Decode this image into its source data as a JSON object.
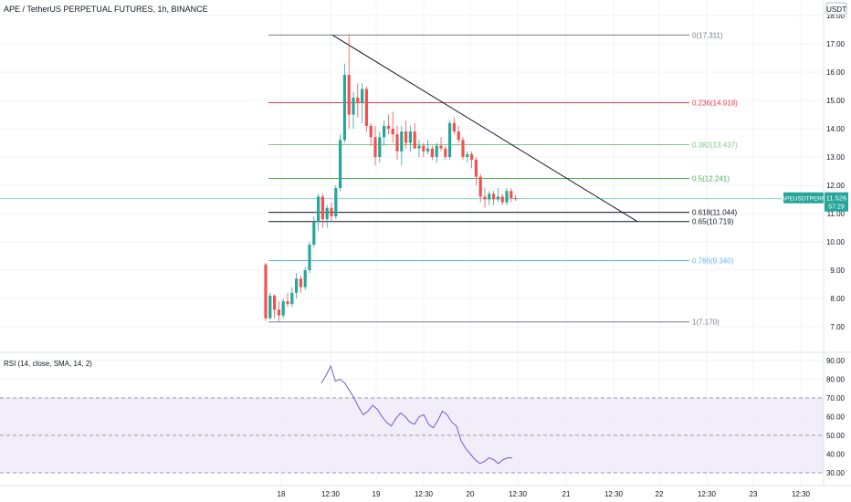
{
  "header": {
    "title": "APE / TetherUS PERPETUAL FUTURES, 1h, BINANCE",
    "currency": "USDT"
  },
  "price_axis": {
    "ticks": [
      "18.00",
      "17.00",
      "16.00",
      "15.00",
      "14.00",
      "13.00",
      "12.00",
      "11.00",
      "10.00",
      "9.00",
      "8.00",
      "7.00"
    ],
    "tick_values": [
      18,
      17,
      16,
      15,
      14,
      13,
      12,
      11,
      10,
      9,
      8,
      7
    ]
  },
  "time_axis": {
    "labels": [
      "18",
      "12:30",
      "19",
      "12:30",
      "20",
      "12:30",
      "21",
      "12:30",
      "22",
      "12:30",
      "23",
      "12:30"
    ]
  },
  "price_tag": {
    "symbol": "APEUSDTPERP",
    "price": "11.526",
    "countdown": "57:29",
    "color": "#26a69a"
  },
  "fib_levels": [
    {
      "label": "0(17.311)",
      "value": 17.311,
      "color": "#787b86"
    },
    {
      "label": "0.236(14.918)",
      "value": 14.918,
      "color": "#f23645"
    },
    {
      "label": "0.382(13.437)",
      "value": 13.437,
      "color": "#81c784"
    },
    {
      "label": "0.5(12.241)",
      "value": 12.241,
      "color": "#4caf50"
    },
    {
      "label": "0.618(11.044)",
      "value": 11.044,
      "color": "#131722"
    },
    {
      "label": "0.65(10.719)",
      "value": 10.719,
      "color": "#131722"
    },
    {
      "label": "0.786(9.340)",
      "value": 9.34,
      "color": "#64b5f6"
    },
    {
      "label": "1(7.170)",
      "value": 7.17,
      "color": "#787b86"
    }
  ],
  "trendline": {
    "start_value": 17.311,
    "end_value": 10.719
  },
  "rsi": {
    "label": "RSI (14, close, SMA, 14, 2)",
    "ticks": [
      "90.00",
      "80.00",
      "70.00",
      "60.00",
      "50.00",
      "40.00",
      "30.00"
    ],
    "tick_values": [
      90,
      80,
      70,
      60,
      50,
      40,
      30
    ],
    "upper_band": 70,
    "middle_band": 50,
    "lower_band": 30,
    "line_color": "#7e57c2",
    "band_fill": "#ede7f6"
  },
  "chart_data": {
    "type": "candlestick",
    "title": "APE / TetherUS PERPETUAL FUTURES, 1h, BINANCE",
    "ylim": [
      6.6,
      18.2
    ],
    "up_color": "#26a69a",
    "down_color": "#ef5350",
    "candles": [
      [
        9.2,
        9.25,
        7.2,
        7.3
      ],
      [
        7.3,
        8.2,
        7.25,
        8.1
      ],
      [
        8.1,
        8.15,
        7.3,
        7.6
      ],
      [
        7.6,
        7.9,
        7.2,
        7.4
      ],
      [
        7.4,
        8.0,
        7.3,
        7.9
      ],
      [
        7.9,
        8.2,
        7.7,
        7.8
      ],
      [
        7.8,
        8.4,
        7.7,
        8.2
      ],
      [
        8.2,
        8.9,
        8.0,
        8.7
      ],
      [
        8.7,
        8.8,
        8.2,
        8.4
      ],
      [
        8.4,
        9.1,
        8.3,
        9.0
      ],
      [
        9.0,
        10.0,
        8.9,
        9.9
      ],
      [
        9.9,
        10.9,
        9.8,
        10.7
      ],
      [
        10.7,
        11.7,
        10.4,
        11.6
      ],
      [
        11.6,
        11.7,
        10.5,
        10.8
      ],
      [
        10.8,
        11.3,
        10.5,
        11.2
      ],
      [
        11.2,
        11.4,
        10.7,
        10.9
      ],
      [
        10.9,
        12.0,
        10.8,
        11.9
      ],
      [
        11.9,
        13.8,
        11.8,
        13.6
      ],
      [
        13.6,
        16.3,
        13.5,
        15.9
      ],
      [
        15.9,
        17.3,
        14.0,
        14.5
      ],
      [
        14.5,
        15.3,
        14.0,
        15.1
      ],
      [
        15.1,
        15.6,
        14.4,
        14.9
      ],
      [
        14.9,
        15.6,
        14.2,
        15.4
      ],
      [
        15.4,
        15.5,
        13.9,
        14.1
      ],
      [
        14.1,
        14.2,
        13.4,
        13.7
      ],
      [
        13.7,
        14.1,
        12.7,
        13.0
      ],
      [
        13.0,
        13.9,
        12.8,
        13.7
      ],
      [
        13.7,
        14.3,
        13.4,
        14.1
      ],
      [
        14.1,
        14.5,
        13.8,
        14.0
      ],
      [
        14.0,
        14.6,
        13.5,
        13.8
      ],
      [
        13.8,
        14.1,
        12.9,
        13.2
      ],
      [
        13.2,
        14.1,
        12.7,
        13.9
      ],
      [
        13.9,
        14.3,
        13.3,
        13.5
      ],
      [
        13.5,
        14.1,
        13.2,
        13.9
      ],
      [
        13.9,
        14.2,
        13.4,
        13.3
      ],
      [
        13.3,
        13.6,
        13.0,
        13.4
      ],
      [
        13.4,
        13.5,
        13.0,
        13.2
      ],
      [
        13.2,
        13.6,
        13.1,
        13.3
      ],
      [
        13.3,
        13.4,
        12.9,
        13.0
      ],
      [
        13.0,
        13.5,
        12.8,
        13.4
      ],
      [
        13.4,
        13.7,
        13.2,
        13.3
      ],
      [
        13.3,
        13.4,
        12.9,
        13.0
      ],
      [
        13.0,
        14.3,
        12.9,
        14.2
      ],
      [
        14.2,
        14.4,
        13.8,
        13.9
      ],
      [
        13.9,
        14.1,
        13.5,
        13.6
      ],
      [
        13.6,
        13.7,
        12.9,
        13.0
      ],
      [
        13.0,
        13.2,
        12.8,
        13.1
      ],
      [
        13.1,
        13.2,
        12.6,
        12.9
      ],
      [
        12.9,
        13.0,
        12.0,
        12.3
      ],
      [
        12.3,
        12.4,
        11.4,
        11.6
      ],
      [
        11.6,
        11.9,
        11.2,
        11.5
      ],
      [
        11.5,
        11.8,
        11.3,
        11.7
      ],
      [
        11.7,
        11.8,
        11.3,
        11.5
      ],
      [
        11.5,
        11.9,
        11.4,
        11.6
      ],
      [
        11.6,
        11.7,
        11.3,
        11.4
      ],
      [
        11.4,
        11.9,
        11.3,
        11.8
      ],
      [
        11.8,
        11.9,
        11.4,
        11.55
      ],
      [
        11.55,
        11.65,
        11.45,
        11.526
      ]
    ],
    "rsi_values": [
      78,
      82,
      87,
      79,
      80,
      78,
      74,
      70,
      65,
      61,
      63,
      66,
      64,
      60,
      57,
      55,
      59,
      62,
      60,
      57,
      56,
      60,
      61,
      56,
      54,
      58,
      63,
      61,
      57,
      55,
      47,
      43,
      40,
      37,
      35,
      36,
      38,
      37,
      35,
      37,
      38,
      38
    ]
  }
}
